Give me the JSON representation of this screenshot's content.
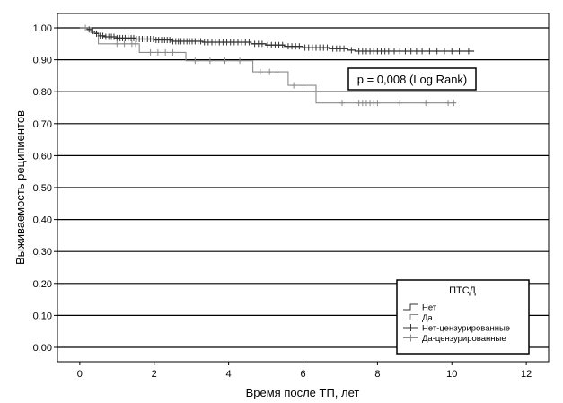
{
  "chart_data": {
    "type": "line",
    "title": "",
    "xlabel": "Время после ТП, лет",
    "ylabel": "Выживаемость реципиентов",
    "xlim": [
      -0.6,
      12.6
    ],
    "ylim": [
      -0.045,
      1.045
    ],
    "x_ticks": [
      0,
      2,
      4,
      6,
      8,
      10,
      12
    ],
    "x_tick_labels": [
      "0",
      "2",
      "4",
      "6",
      "8",
      "10",
      "12"
    ],
    "y_ticks": [
      0,
      0.1,
      0.2,
      0.3,
      0.4,
      0.5,
      0.6,
      0.7,
      0.8,
      0.9,
      1.0
    ],
    "y_tick_labels": [
      "0,00",
      "0,10",
      "0,20",
      "0,30",
      "0,40",
      "0,50",
      "0,60",
      "0,70",
      "0,80",
      "0,90",
      "1,00"
    ],
    "grid": "horizontal",
    "legend": {
      "title": "ПТСД",
      "placement": "bottom-right",
      "entries": [
        "Нет",
        "Да",
        "Нет-цензурированные",
        "Да-цензурированные"
      ]
    },
    "annotation": "p = 0,008 (Log Rank)",
    "series": [
      {
        "name": "Нет",
        "color": "#333333",
        "steps": [
          [
            0,
            1.0
          ],
          [
            0.2,
            0.995
          ],
          [
            0.3,
            0.99
          ],
          [
            0.4,
            0.982
          ],
          [
            0.5,
            0.975
          ],
          [
            0.7,
            0.972
          ],
          [
            1.0,
            0.968
          ],
          [
            1.5,
            0.965
          ],
          [
            2.0,
            0.962
          ],
          [
            2.5,
            0.958
          ],
          [
            3.3,
            0.955
          ],
          [
            4.6,
            0.95
          ],
          [
            5.0,
            0.946
          ],
          [
            5.5,
            0.942
          ],
          [
            6.0,
            0.938
          ],
          [
            6.7,
            0.935
          ],
          [
            7.2,
            0.93
          ],
          [
            7.4,
            0.927
          ],
          [
            10.6,
            0.927
          ]
        ],
        "censored": [
          0.25,
          0.35,
          0.45,
          0.55,
          0.62,
          0.7,
          0.78,
          0.85,
          0.92,
          1.0,
          1.08,
          1.15,
          1.22,
          1.3,
          1.38,
          1.45,
          1.52,
          1.6,
          1.68,
          1.75,
          1.82,
          1.9,
          1.98,
          2.05,
          2.12,
          2.2,
          2.28,
          2.35,
          2.42,
          2.5,
          2.58,
          2.65,
          2.72,
          2.8,
          2.88,
          2.95,
          3.02,
          3.1,
          3.18,
          3.25,
          3.35,
          3.45,
          3.55,
          3.65,
          3.75,
          3.85,
          3.95,
          4.05,
          4.15,
          4.25,
          4.35,
          4.45,
          4.55,
          4.7,
          4.8,
          4.9,
          5.05,
          5.15,
          5.25,
          5.35,
          5.45,
          5.6,
          5.7,
          5.8,
          5.9,
          6.05,
          6.15,
          6.25,
          6.35,
          6.45,
          6.55,
          6.65,
          6.8,
          6.9,
          7.0,
          7.1,
          7.3,
          7.5,
          7.6,
          7.7,
          7.8,
          7.9,
          8.0,
          8.1,
          8.2,
          8.3,
          8.45,
          8.6,
          8.75,
          8.9,
          9.05,
          9.2,
          9.4,
          9.6,
          9.8,
          10.0,
          10.2,
          10.45
        ]
      },
      {
        "name": "Да",
        "color": "#8a8a8a",
        "steps": [
          [
            0,
            1.0
          ],
          [
            0.3,
            0.985
          ],
          [
            0.5,
            0.95
          ],
          [
            1.6,
            0.923
          ],
          [
            2.85,
            0.897
          ],
          [
            4.65,
            0.862
          ],
          [
            5.6,
            0.82
          ],
          [
            6.35,
            0.765
          ],
          [
            10.1,
            0.765
          ]
        ],
        "censored": [
          0.15,
          1.0,
          1.2,
          1.4,
          1.5,
          1.9,
          2.1,
          2.3,
          2.5,
          3.1,
          3.5,
          3.9,
          4.3,
          4.85,
          5.1,
          5.3,
          5.75,
          6.0,
          7.05,
          7.5,
          7.6,
          7.7,
          7.8,
          7.9,
          8.0,
          8.6,
          9.3,
          9.9,
          10.05
        ]
      }
    ]
  }
}
